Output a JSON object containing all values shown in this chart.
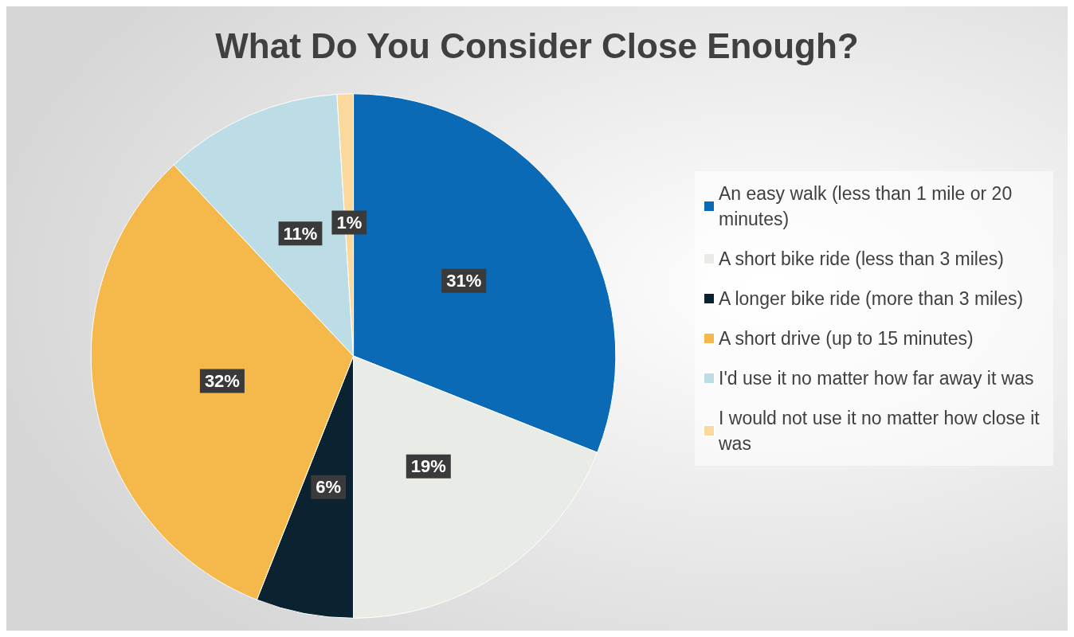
{
  "chart_data": {
    "type": "pie",
    "title": "What Do You Consider Close Enough?",
    "categories": [
      "An easy walk (less than 1 mile or 20 minutes)",
      "A short bike ride (less than 3 miles)",
      "A longer bike ride (more than 3 miles)",
      "A short drive (up to 15 minutes)",
      "I'd use it no matter how far away it was",
      "I would not use it no matter how close it was"
    ],
    "values": [
      31,
      19,
      6,
      32,
      11,
      1
    ],
    "colors": [
      "#0a6ab6",
      "#e9ebe7",
      "#0b2230",
      "#f4b84b",
      "#bcdde5",
      "#fbd89b"
    ],
    "value_labels": [
      "31%",
      "19%",
      "6%",
      "32%",
      "11%",
      "1%"
    ],
    "legend": "right"
  }
}
